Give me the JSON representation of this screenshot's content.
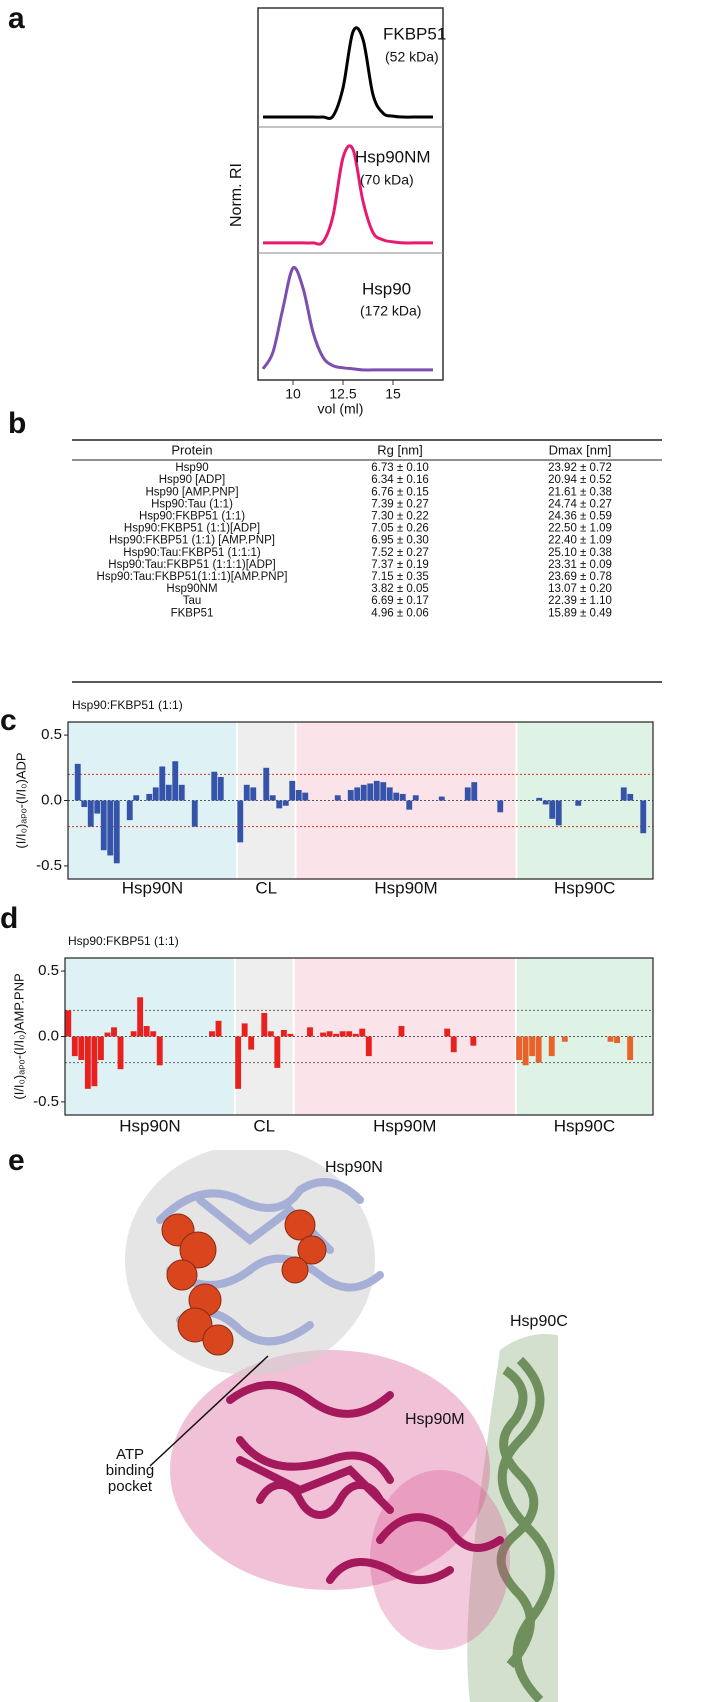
{
  "panel_labels": [
    "a",
    "b",
    "c",
    "d",
    "e"
  ],
  "chart_data": [
    {
      "type": "line",
      "ylabel": "Norm. RI",
      "xlabel": "vol (ml)",
      "xlim": [
        8.25,
        17.5
      ],
      "xticks": [
        10,
        12.5,
        15
      ],
      "ylim": [
        0,
        1
      ],
      "x": [
        8.5,
        9,
        9.5,
        10,
        10.5,
        11,
        11.5,
        12,
        12.5,
        13,
        13.5,
        14,
        14.5,
        15,
        15.5,
        16,
        16.5,
        17
      ],
      "series": [
        {
          "name": "FKBP51",
          "mass": "(52 kDa)",
          "color": "#000000",
          "values": [
            0.02,
            0.02,
            0.02,
            0.02,
            0.02,
            0.02,
            0.02,
            0.03,
            0.32,
            0.9,
            0.82,
            0.25,
            0.06,
            0.03,
            0.02,
            0.02,
            0.02,
            0.02
          ]
        },
        {
          "name": "Hsp90NM",
          "mass": "(70 kDa)",
          "color": "#e8196e",
          "values": [
            0.02,
            0.02,
            0.02,
            0.02,
            0.02,
            0.02,
            0.03,
            0.28,
            0.84,
            0.92,
            0.42,
            0.12,
            0.05,
            0.03,
            0.02,
            0.02,
            0.02,
            0.02
          ]
        },
        {
          "name": "Hsp90",
          "mass": "(172 kDa)",
          "color": "#7b4fb0",
          "values": [
            0.03,
            0.19,
            0.61,
            0.99,
            0.8,
            0.38,
            0.14,
            0.06,
            0.04,
            0.03,
            0.02,
            0.02,
            0.02,
            0.02,
            0.02,
            0.02,
            0.02,
            0.02
          ]
        }
      ]
    },
    {
      "type": "bar",
      "title": "Hsp90:FKBP51 (1:1)",
      "ylabel": "(I/I₀)ₐₚₒ-(I/I₀)ADP",
      "ylim": [
        -0.6,
        0.6
      ],
      "yticks": [
        -0.5,
        {
          "value": 0,
          "label": "0.0"
        },
        0.5
      ],
      "thresholds": [
        0.2,
        -0.2
      ],
      "threshold_color": "#e0301e",
      "regions": [
        {
          "name": "Hsp90N",
          "background": "#def2f5",
          "color": "#3553a8",
          "values": [
            null,
            0.28,
            -0.05,
            -0.2,
            -0.1,
            -0.38,
            -0.42,
            -0.48,
            null,
            -0.15,
            0.04,
            null,
            0.05,
            0.1,
            0.26,
            0.12,
            0.3,
            0.12,
            null,
            -0.2,
            null,
            null,
            0.22,
            0.18,
            null,
            null
          ]
        },
        {
          "name": "CL",
          "background": "#eeeeee",
          "color": "#3553a8",
          "values": [
            -0.32,
            0.12,
            0.1,
            null,
            0.25,
            0.04,
            -0.06,
            -0.04,
            0.15
          ]
        },
        {
          "name": "Hsp90M",
          "background": "#fbe3ea",
          "color": "#3553a8",
          "values": [
            0.08,
            0.06,
            null,
            null,
            null,
            null,
            0.04,
            null,
            0.08,
            0.1,
            0.12,
            0.13,
            0.15,
            0.14,
            0.1,
            0.06,
            0.05,
            -0.07,
            0.04,
            null,
            null,
            null,
            0.03,
            null,
            null,
            null,
            0.1,
            0.14,
            null,
            null,
            null,
            -0.09,
            null,
            null
          ]
        },
        {
          "name": "Hsp90C",
          "background": "#def2e6",
          "color": "#3553a8",
          "values": [
            null,
            null,
            null,
            0.02,
            -0.03,
            -0.14,
            -0.19,
            null,
            null,
            -0.04,
            null,
            null,
            null,
            null,
            null,
            null,
            0.1,
            0.05,
            null,
            -0.25,
            null
          ]
        }
      ]
    },
    {
      "type": "bar",
      "title": "Hsp90:FKBP51 (1:1)",
      "ylabel": "(I/I₀)ₐₚₒ-(I/I₀)AMP.PNP",
      "ylim": [
        -0.6,
        0.6
      ],
      "yticks": [
        -0.5,
        {
          "value": 0,
          "label": "0.0"
        },
        0.5
      ],
      "thresholds": [
        0.2,
        -0.2
      ],
      "threshold_color": "#666666",
      "regions": [
        {
          "name": "Hsp90N",
          "background": "#def2f5",
          "color": "#e8201e",
          "values": [
            0.2,
            -0.15,
            -0.18,
            -0.4,
            -0.38,
            -0.18,
            0.03,
            0.07,
            -0.25,
            null,
            0.04,
            0.3,
            0.08,
            0.04,
            -0.22,
            null,
            null,
            null,
            null,
            null,
            null,
            null,
            0.04,
            0.12,
            null,
            null
          ]
        },
        {
          "name": "CL",
          "background": "#eeeeee",
          "color": "#e8201e",
          "values": [
            -0.4,
            0.1,
            -0.1,
            null,
            0.18,
            0.04,
            -0.24,
            0.05,
            0.02
          ]
        },
        {
          "name": "Hsp90M",
          "background": "#fbe3ea",
          "color": "#e8201e",
          "values": [
            null,
            null,
            0.07,
            null,
            0.03,
            0.04,
            0.02,
            0.04,
            0.04,
            0.02,
            0.06,
            -0.15,
            null,
            null,
            null,
            null,
            0.08,
            null,
            null,
            null,
            null,
            null,
            null,
            0.06,
            -0.12,
            null,
            null,
            -0.07,
            null,
            null,
            null,
            null,
            null,
            null
          ]
        },
        {
          "name": "Hsp90C",
          "background": "#def2e6",
          "color": "#e8622a",
          "values": [
            -0.18,
            -0.22,
            -0.15,
            -0.2,
            null,
            -0.15,
            null,
            -0.04,
            null,
            null,
            null,
            null,
            null,
            null,
            -0.04,
            -0.05,
            null,
            -0.18,
            null,
            null,
            null
          ]
        }
      ]
    }
  ],
  "table": {
    "columns": [
      "Protein",
      "Rg [nm]",
      "Dmax [nm]"
    ],
    "rows": [
      [
        "Hsp90",
        "6.73 ± 0.10",
        "23.92 ± 0.72"
      ],
      [
        "Hsp90 [ADP]",
        "6.34 ± 0.16",
        "20.94 ± 0.52"
      ],
      [
        "Hsp90 [AMP.PNP]",
        "6.76 ± 0.15",
        "21.61 ± 0.38"
      ],
      [
        "Hsp90:Tau (1:1)",
        "7.39 ± 0.27",
        "24.74 ± 0.27"
      ],
      [
        "Hsp90:FKBP51 (1:1)",
        "7.30 ± 0.22",
        "24.36 ± 0.59"
      ],
      [
        "Hsp90:FKBP51 (1:1)[ADP]",
        "7.05 ± 0.26",
        "22.50 ± 1.09"
      ],
      [
        "Hsp90:FKBP51 (1:1) [AMP.PNP]",
        "6.95 ± 0.30",
        "22.40 ± 1.09"
      ],
      [
        "Hsp90:Tau:FKBP51 (1:1:1)",
        "7.52 ± 0.27",
        "25.10 ± 0.38"
      ],
      [
        "Hsp90:Tau:FKBP51 (1:1:1)[ADP]",
        "7.37 ± 0.19",
        "23.31 ± 0.09"
      ],
      [
        "Hsp90:Tau:FKBP51(1:1:1)[AMP.PNP]",
        "7.15 ± 0.35",
        "23.69 ± 0.78"
      ],
      [
        "Hsp90NM",
        "3.82 ± 0.05",
        "13.07 ± 0.20"
      ],
      [
        "Tau",
        "6.69 ± 0.17",
        "22.39 ± 1.10"
      ],
      [
        "FKBP51",
        "4.96 ± 0.06",
        "15.89 ± 0.49"
      ]
    ]
  },
  "structure": {
    "labels": {
      "n": "Hsp90N",
      "c": "Hsp90C",
      "m": "Hsp90M",
      "pocket": [
        "ATP",
        "binding",
        "pocket"
      ]
    }
  }
}
